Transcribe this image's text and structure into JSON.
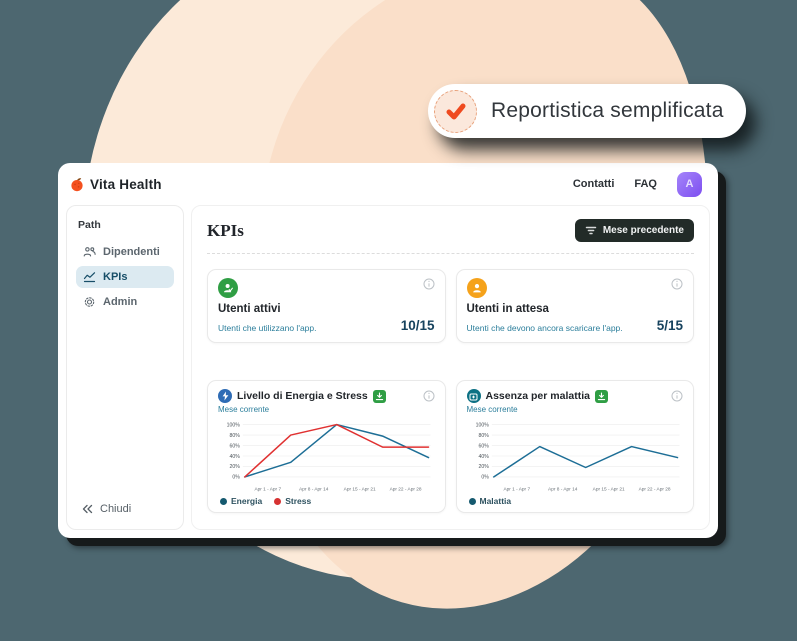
{
  "badge": {
    "label": "Reportistica semplificata"
  },
  "window": {
    "brand": "Vita Health",
    "nav": {
      "contatti": "Contatti",
      "faq": "FAQ",
      "avatar_letter": "A"
    },
    "sidebar": {
      "section_label": "Path",
      "items": [
        {
          "label": "Dipendenti",
          "icon": "users-icon",
          "active": false
        },
        {
          "label": "KPIs",
          "icon": "line-chart-icon",
          "active": true
        },
        {
          "label": "Admin",
          "icon": "gear-icon",
          "active": false
        }
      ],
      "collapse_label": "Chiudi"
    },
    "main": {
      "title": "KPIs",
      "filter_button_label": "Mese precedente",
      "kpi_cards": [
        {
          "title": "Utenti attivi",
          "subtitle": "Utenti che utilizzano l'app.",
          "value": "10/15",
          "icon": "user-check-icon",
          "icon_bg": "#2f9e44"
        },
        {
          "title": "Utenti in attesa",
          "subtitle": "Utenti che devono ancora scaricare l'app.",
          "value": "5/15",
          "icon": "user-waiting-icon",
          "icon_bg": "#f5a21b"
        }
      ]
    }
  },
  "colors": {
    "background": "#4d6770",
    "blob_light": "#fcead9",
    "blob_dark": "#fadfc9",
    "accent_orange": "#ef4a1f",
    "teal_text": "#2b7e9b",
    "value_navy": "#17435e",
    "active_item_bg": "#dceaf1",
    "download_green": "#2f9e44"
  },
  "chart_data": [
    {
      "type": "line",
      "title": "Livello di Energia e Stress",
      "subtitle": "Mese corrente",
      "x_labels": [
        "Apr 1 - Apr 7",
        "Apr 8 - Apr 14",
        "Apr 15 - Apr 21",
        "Apr 22 - Apr 28"
      ],
      "y_ticks": [
        "0%",
        "20%",
        "40%",
        "60%",
        "80%",
        "100%"
      ],
      "ylim": [
        0,
        100
      ],
      "grid": true,
      "legend_position": "bottom",
      "series": [
        {
          "name": "Energia",
          "color": "#1d6e96",
          "values": [
            0,
            28,
            100,
            78,
            37
          ]
        },
        {
          "name": "Stress",
          "color": "#e03131",
          "values": [
            0,
            80,
            100,
            57,
            57
          ]
        }
      ]
    },
    {
      "type": "line",
      "title": "Assenza per malattia",
      "subtitle": "Mese corrente",
      "x_labels": [
        "Apr 1 - Apr 7",
        "Apr 8 - Apr 14",
        "Apr 15 - Apr 21",
        "Apr 22 - Apr 28"
      ],
      "y_ticks": [
        "0%",
        "20%",
        "40%",
        "60%",
        "80%",
        "100%"
      ],
      "ylim": [
        0,
        100
      ],
      "grid": true,
      "legend_position": "bottom",
      "series": [
        {
          "name": "Malattia",
          "color": "#1d6e96",
          "values": [
            0,
            58,
            18,
            58,
            37
          ]
        }
      ]
    }
  ]
}
